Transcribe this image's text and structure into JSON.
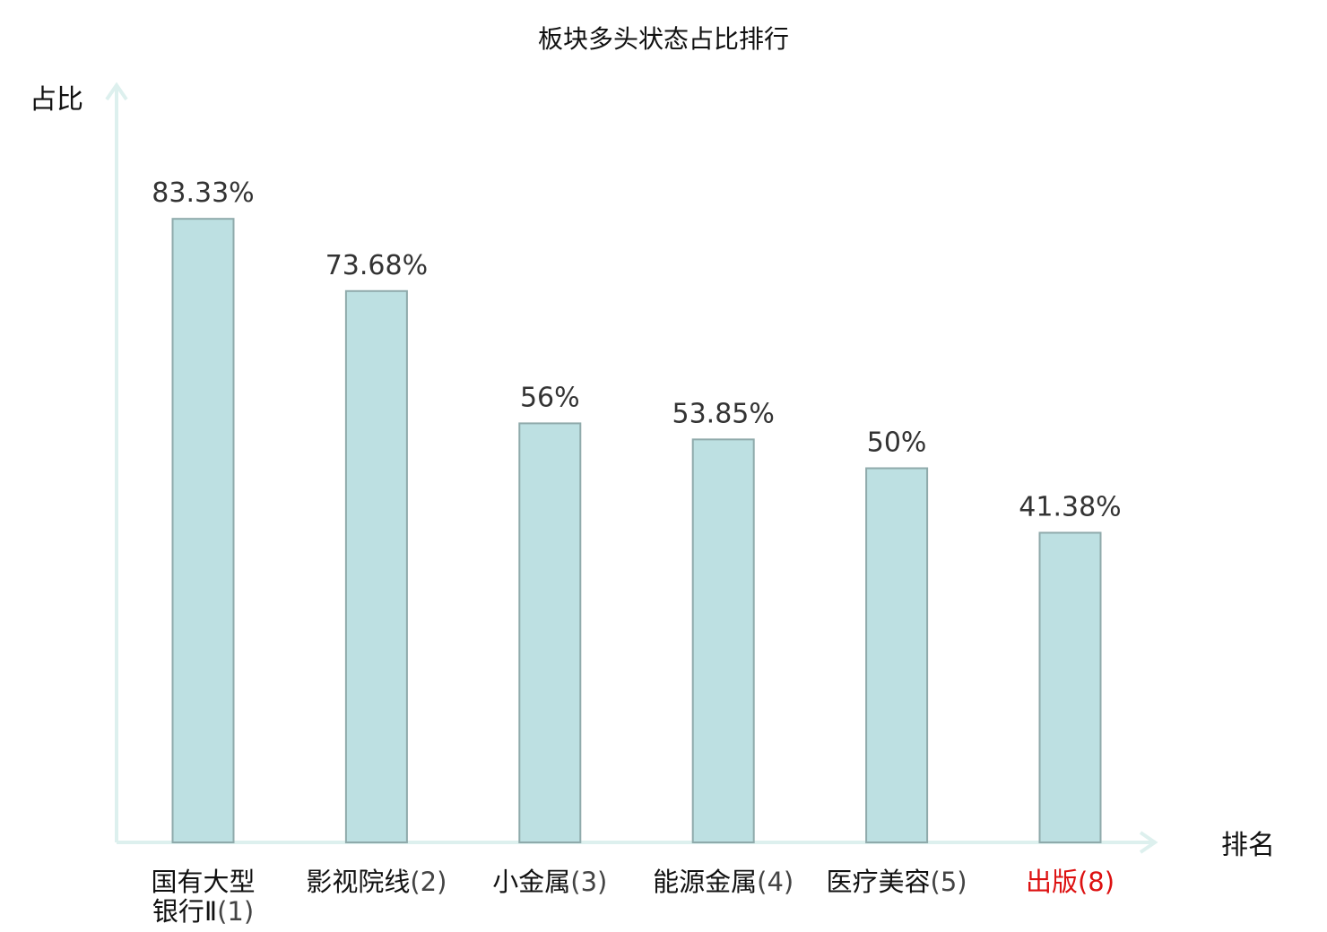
{
  "chart_data": {
    "type": "bar",
    "title": "板块多头状态占比排行",
    "ylabel": "占比",
    "xlabel": "排名",
    "ylim": [
      0,
      100
    ],
    "grid": false,
    "categories": [
      {
        "name_lines": [
          "国有大型",
          "银行Ⅱ"
        ],
        "rank": "(1)",
        "highlight": false
      },
      {
        "name_lines": [
          "影视院线"
        ],
        "rank": "(2)",
        "highlight": false
      },
      {
        "name_lines": [
          "小金属"
        ],
        "rank": "(3)",
        "highlight": false
      },
      {
        "name_lines": [
          "能源金属"
        ],
        "rank": "(4)",
        "highlight": false
      },
      {
        "name_lines": [
          "医疗美容"
        ],
        "rank": "(5)",
        "highlight": false
      },
      {
        "name_lines": [
          "出版"
        ],
        "rank": "(8)",
        "highlight": true
      }
    ],
    "values": [
      83.33,
      73.68,
      56,
      53.85,
      50,
      41.38
    ],
    "value_labels": [
      "83.33%",
      "73.68%",
      "56%",
      "53.85%",
      "50%",
      "41.38%"
    ]
  },
  "colors": {
    "bar_fill": "#bde0e2",
    "bar_stroke": "#8faaab",
    "axis": "#ddf0ee",
    "label_text": "#111111",
    "rank_text": "#444444",
    "highlight_text": "#dd1111"
  }
}
